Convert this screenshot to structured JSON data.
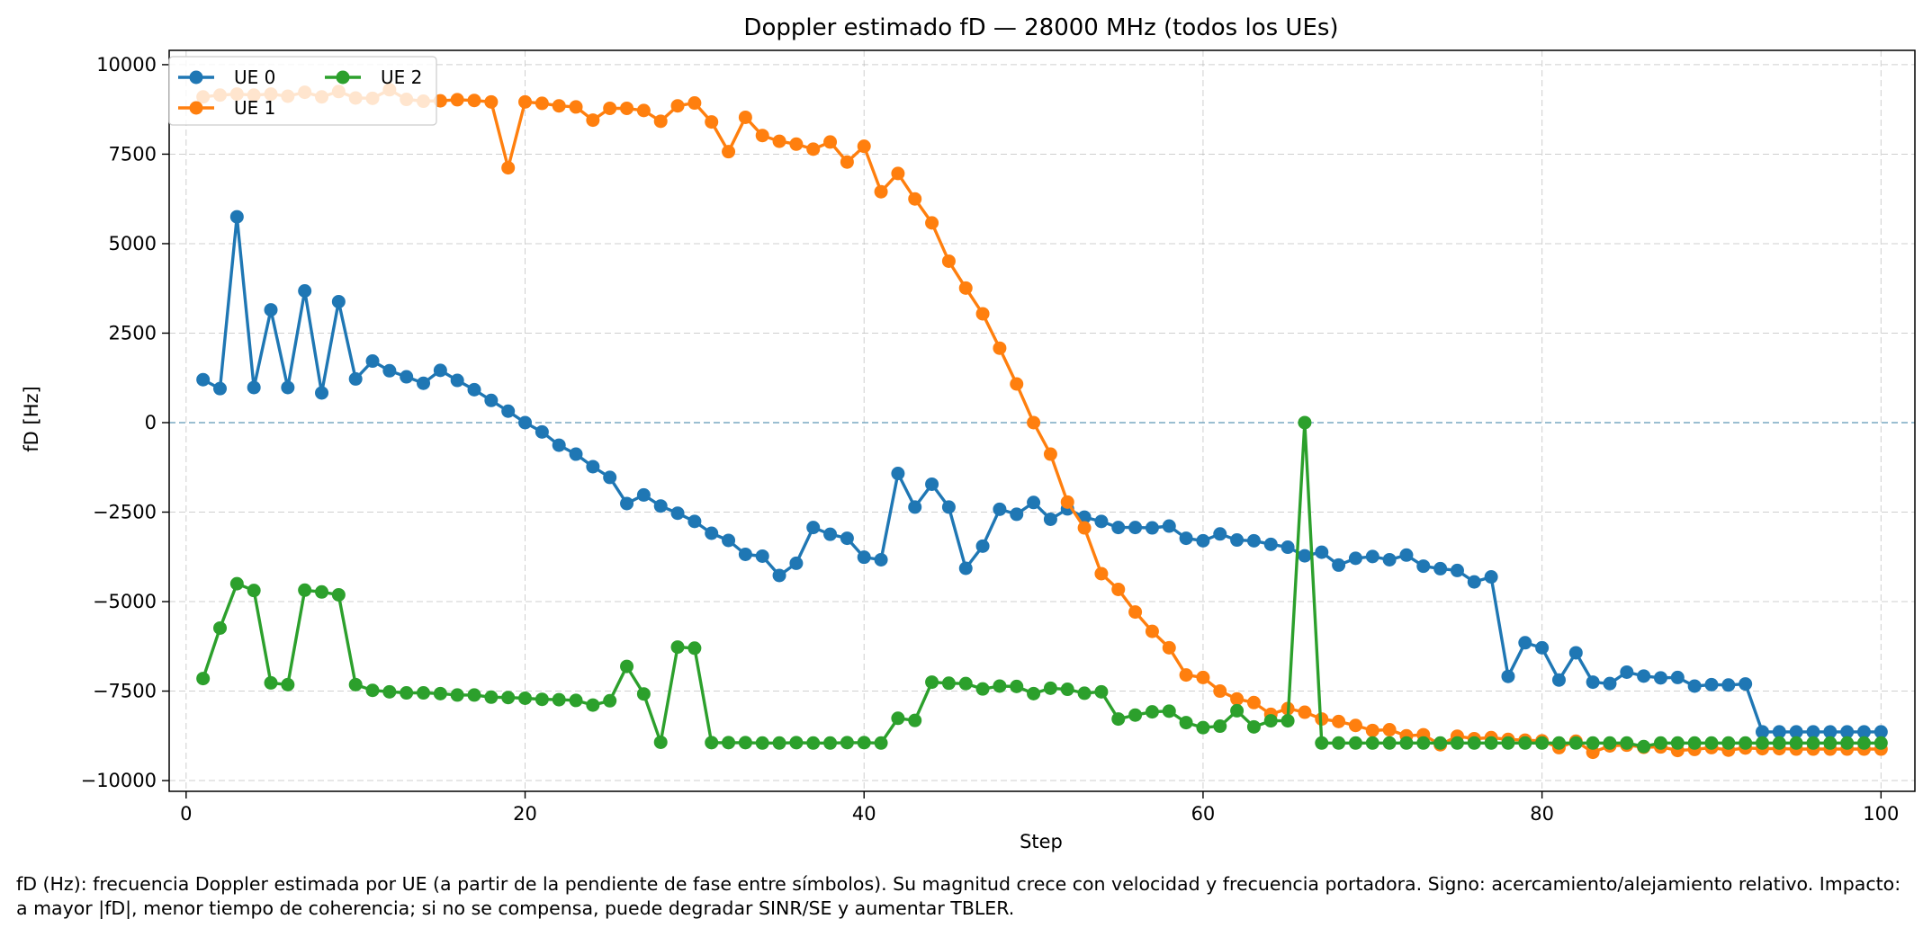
{
  "chart_data": {
    "type": "line",
    "title": "Doppler estimado fD — 28000 MHz (todos los UEs)",
    "xlabel": "Step",
    "ylabel": "fD [Hz]",
    "xlim": [
      -1,
      102
    ],
    "ylim": [
      -10300,
      10400
    ],
    "xticks": [
      "0",
      "20",
      "40",
      "60",
      "80",
      "100"
    ],
    "xtick_values": [
      0,
      20,
      40,
      60,
      80,
      100
    ],
    "yticks": [
      "−10000",
      "−7500",
      "−5000",
      "−2500",
      "0",
      "2500",
      "5000",
      "7500",
      "10000"
    ],
    "ytick_values": [
      -10000,
      -7500,
      -5000,
      -2500,
      0,
      2500,
      5000,
      7500,
      10000
    ],
    "grid": true,
    "zero_line": true,
    "legend_position": "top-left",
    "series": [
      {
        "name": "UE 0",
        "color": "#1f77b4",
        "values": [
          1200,
          950,
          5750,
          980,
          3150,
          980,
          3680,
          830,
          3380,
          1220,
          1720,
          1450,
          1280,
          1100,
          1460,
          1180,
          920,
          620,
          320,
          0,
          -260,
          -630,
          -880,
          -1230,
          -1530,
          -2260,
          -2020,
          -2330,
          -2530,
          -2760,
          -3090,
          -3290,
          -3680,
          -3730,
          -4270,
          -3930,
          -2930,
          -3120,
          -3230,
          -3760,
          -3830,
          -1420,
          -2360,
          -1720,
          -2360,
          -4070,
          -3450,
          -2420,
          -2560,
          -2230,
          -2700,
          -2410,
          -2640,
          -2760,
          -2930,
          -2930,
          -2940,
          -2890,
          -3230,
          -3300,
          -3110,
          -3280,
          -3300,
          -3400,
          -3480,
          -3720,
          -3620,
          -3980,
          -3790,
          -3740,
          -3830,
          -3700,
          -4010,
          -4080,
          -4130,
          -4450,
          -4310,
          -7090,
          -6150,
          -6290,
          -7190,
          -6430,
          -7250,
          -7290,
          -6970,
          -7080,
          -7130,
          -7120,
          -7360,
          -7320,
          -7330,
          -7300,
          -8640,
          -8640,
          -8640,
          -8640,
          -8640,
          -8640,
          -8640,
          -8640
        ]
      },
      {
        "name": "UE 1",
        "color": "#ff7f0e",
        "values": [
          9100,
          9150,
          9180,
          9150,
          9180,
          9120,
          9230,
          9100,
          9250,
          9070,
          9060,
          9300,
          9030,
          8980,
          8990,
          9020,
          9000,
          8960,
          7120,
          8960,
          8920,
          8850,
          8820,
          8450,
          8780,
          8780,
          8720,
          8420,
          8850,
          8930,
          8400,
          7570,
          8530,
          8020,
          7860,
          7780,
          7640,
          7840,
          7280,
          7720,
          6450,
          6960,
          6250,
          5580,
          4510,
          3760,
          3040,
          2080,
          1080,
          0,
          -880,
          -2220,
          -2940,
          -4220,
          -4660,
          -5290,
          -5830,
          -6290,
          -7050,
          -7120,
          -7500,
          -7720,
          -7820,
          -8150,
          -7990,
          -8090,
          -8280,
          -8350,
          -8460,
          -8600,
          -8580,
          -8750,
          -8720,
          -9000,
          -8760,
          -8830,
          -8800,
          -8850,
          -8870,
          -8890,
          -9080,
          -8900,
          -9210,
          -9030,
          -9010,
          -9070,
          -9060,
          -9160,
          -9130,
          -9080,
          -9150,
          -9090,
          -9110,
          -9110,
          -9120,
          -9120,
          -9120,
          -9120,
          -9120,
          -9120
        ]
      },
      {
        "name": "UE 2",
        "color": "#2ca02c",
        "values": [
          -7150,
          -5740,
          -4500,
          -4690,
          -7270,
          -7320,
          -4680,
          -4730,
          -4810,
          -7320,
          -7480,
          -7520,
          -7550,
          -7550,
          -7570,
          -7610,
          -7610,
          -7670,
          -7680,
          -7700,
          -7730,
          -7740,
          -7760,
          -7890,
          -7770,
          -6810,
          -7580,
          -8930,
          -6270,
          -6300,
          -8940,
          -8940,
          -8940,
          -8950,
          -8950,
          -8940,
          -8950,
          -8950,
          -8940,
          -8940,
          -8950,
          -8260,
          -8320,
          -7250,
          -7280,
          -7290,
          -7440,
          -7360,
          -7370,
          -7570,
          -7420,
          -7450,
          -7560,
          -7520,
          -8280,
          -8170,
          -8080,
          -8060,
          -8380,
          -8520,
          -8480,
          -8050,
          -8500,
          -8330,
          -8330,
          0,
          -8950,
          -8950,
          -8950,
          -8950,
          -8950,
          -8950,
          -8950,
          -8950,
          -8950,
          -8950,
          -8950,
          -8950,
          -8950,
          -8950,
          -8950,
          -8950,
          -8950,
          -8950,
          -8950,
          -9050,
          -8950,
          -8950,
          -8950,
          -8950,
          -8950,
          -8950,
          -8950,
          -8950,
          -8950,
          -8950,
          -8950,
          -8950,
          -8950,
          -8950
        ]
      }
    ]
  },
  "caption": "fD (Hz): frecuencia Doppler estimada por UE (a partir de la pendiente de fase entre símbolos). Su magnitud crece con velocidad y frecuencia portadora. Signo: acercamiento/alejamiento relativo. Impacto: a mayor |fD|, menor tiempo de coherencia; si no se compensa, puede degradar SINR/SE y aumentar TBLER."
}
